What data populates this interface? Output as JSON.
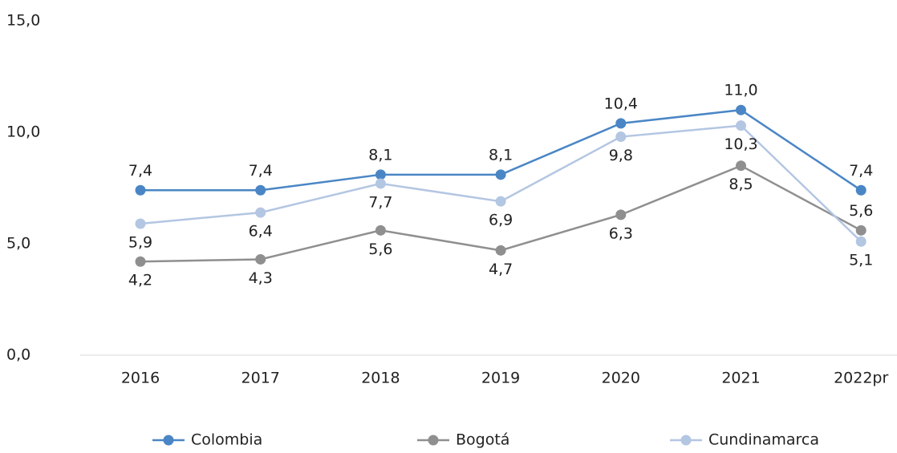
{
  "chart_data": {
    "type": "line",
    "categories": [
      "2016",
      "2017",
      "2018",
      "2019",
      "2020",
      "2021",
      "2022pr"
    ],
    "series": [
      {
        "name": "Colombia",
        "color": "#4a86c5",
        "values": [
          7.4,
          7.4,
          8.1,
          8.1,
          10.4,
          11.0,
          7.4
        ],
        "value_labels": [
          "7,4",
          "7,4",
          "8,1",
          "8,1",
          "10,4",
          "11,0",
          "7,4"
        ]
      },
      {
        "name": "Bogotá",
        "color": "#8f8f8f",
        "values": [
          4.2,
          4.3,
          5.6,
          4.7,
          6.3,
          8.5,
          5.6
        ],
        "value_labels": [
          "4,2",
          "4,3",
          "5,6",
          "4,7",
          "6,3",
          "8,5",
          "5,6"
        ]
      },
      {
        "name": "Cundinamarca",
        "color": "#b3c6e2",
        "values": [
          5.9,
          6.4,
          7.7,
          6.9,
          9.8,
          10.3,
          5.1
        ],
        "value_labels": [
          "5,9",
          "6,4",
          "7,7",
          "6,9",
          "9,8",
          "10,3",
          "5,1"
        ]
      }
    ],
    "ylim": [
      0,
      15
    ],
    "yticks": [
      {
        "value": 0,
        "label": "0,0"
      },
      {
        "value": 5,
        "label": "5,0"
      },
      {
        "value": 10,
        "label": "10,0"
      },
      {
        "value": 15,
        "label": "15,0"
      }
    ],
    "legend": "bottom"
  }
}
